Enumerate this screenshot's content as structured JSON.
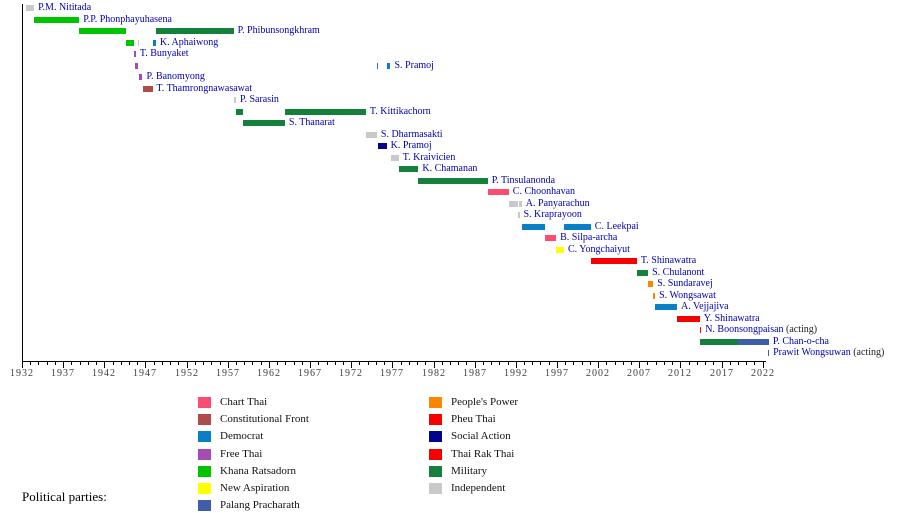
{
  "chart_data": {
    "type": "timeline",
    "title": "",
    "legend_title": "Political parties:",
    "axis": {
      "min": 1932,
      "max": 2023,
      "major_tick_interval": 5,
      "minor_tick_interval": 1,
      "tick_labels": [
        "1932",
        "1937",
        "1942",
        "1947",
        "1952",
        "1957",
        "1962",
        "1967",
        "1972",
        "1977",
        "1982",
        "1987",
        "1992",
        "1997",
        "2002",
        "2007",
        "2012",
        "2017",
        "2022"
      ]
    },
    "party_colors": {
      "Chart Thai": "#FB4D73",
      "Constitutional Front": "#AE4C4C",
      "Democrat": "#0780C8",
      "Free Thai": "#A54CB4",
      "Khana Ratsadorn": "#00C400",
      "New Aspiration": "#FFFF00",
      "Palang Pracharath": "#3F5DA9",
      "People's Power": "#FC8600",
      "Pheu Thai": "#F80000",
      "Social Action": "#03038C",
      "Thai Rak Thai": "#F80000",
      "Military": "#15803C",
      "Independent": "#C9C9C9"
    },
    "legend_columns": [
      [
        "Chart Thai",
        "Constitutional Front",
        "Democrat",
        "Free Thai",
        "Khana Ratsadorn",
        "New Aspiration",
        "Palang Pracharath"
      ],
      [
        "People's Power",
        "Pheu Thai",
        "Social Action",
        "Thai Rak Thai",
        "Military",
        "Independent"
      ]
    ],
    "rows": [
      {
        "name": "P.M. Nititada",
        "acting": "",
        "segments": [
          {
            "party": "Independent",
            "start": 1932.5,
            "end": 1933.47
          }
        ]
      },
      {
        "name": "P.P. Phonphayuhasena",
        "acting": "",
        "segments": [
          {
            "party": "Khana Ratsadorn",
            "start": 1933.47,
            "end": 1938.96
          }
        ]
      },
      {
        "name": "P. Phibunsongkhram",
        "acting": "",
        "segments": [
          {
            "party": "Khana Ratsadorn",
            "start": 1938.96,
            "end": 1944.58
          },
          {
            "party": "Military",
            "start": 1948.27,
            "end": 1957.71
          }
        ]
      },
      {
        "name": "K. Aphaiwong",
        "acting": "",
        "segments": [
          {
            "party": "Khana Ratsadorn",
            "start": 1944.58,
            "end": 1945.66
          },
          {
            "party": "Independent",
            "start": 1946.08,
            "end": 1946.23
          },
          {
            "party": "Democrat",
            "start": 1947.86,
            "end": 1948.27
          }
        ]
      },
      {
        "name": "T. Bunyaket",
        "acting": "",
        "segments": [
          {
            "party": "Free Thai",
            "start": 1945.66,
            "end": 1945.72
          }
        ]
      },
      {
        "name": "S. Pramoj",
        "acting": "",
        "segments": [
          {
            "party": "Free Thai",
            "start": 1945.72,
            "end": 1946.08
          },
          {
            "party": "Democrat",
            "start": 1975.12,
            "end": 1975.2
          },
          {
            "party": "Democrat",
            "start": 1976.3,
            "end": 1976.77
          }
        ]
      },
      {
        "name": "P. Banomyong",
        "acting": "",
        "segments": [
          {
            "party": "Free Thai",
            "start": 1946.23,
            "end": 1946.64
          }
        ]
      },
      {
        "name": "T. Thamrongnawasawat",
        "acting": "",
        "segments": [
          {
            "party": "Constitutional Front",
            "start": 1946.64,
            "end": 1947.85
          }
        ]
      },
      {
        "name": "P. Sarasin",
        "acting": "",
        "segments": [
          {
            "party": "Independent",
            "start": 1957.72,
            "end": 1958.0
          }
        ]
      },
      {
        "name": "T. Kittikachorn",
        "acting": "",
        "segments": [
          {
            "party": "Military",
            "start": 1958.0,
            "end": 1958.8
          },
          {
            "party": "Military",
            "start": 1963.94,
            "end": 1973.79
          }
        ]
      },
      {
        "name": "S. Thanarat",
        "acting": "",
        "segments": [
          {
            "party": "Military",
            "start": 1958.8,
            "end": 1963.94
          }
        ]
      },
      {
        "name": "S. Dharmasakti",
        "acting": "",
        "segments": [
          {
            "party": "Independent",
            "start": 1973.79,
            "end": 1975.12
          }
        ]
      },
      {
        "name": "K. Pramoj",
        "acting": "",
        "segments": [
          {
            "party": "Social Action",
            "start": 1975.2,
            "end": 1976.3
          }
        ]
      },
      {
        "name": "T. Kraivicien",
        "acting": "",
        "segments": [
          {
            "party": "Independent",
            "start": 1976.77,
            "end": 1977.78
          }
        ]
      },
      {
        "name": "K. Chamanan",
        "acting": "",
        "segments": [
          {
            "party": "Military",
            "start": 1977.86,
            "end": 1980.17
          }
        ]
      },
      {
        "name": "P. Tinsulanonda",
        "acting": "",
        "segments": [
          {
            "party": "Military",
            "start": 1980.17,
            "end": 1988.59
          }
        ]
      },
      {
        "name": "C. Choonhavan",
        "acting": "",
        "segments": [
          {
            "party": "Chart Thai",
            "start": 1988.59,
            "end": 1991.15
          }
        ]
      },
      {
        "name": "A. Panyarachun",
        "acting": "",
        "segments": [
          {
            "party": "Independent",
            "start": 1991.17,
            "end": 1992.27
          },
          {
            "party": "Independent",
            "start": 1992.44,
            "end": 1992.73
          }
        ]
      },
      {
        "name": "S. Kraprayoon",
        "acting": "",
        "segments": [
          {
            "party": "Independent",
            "start": 1992.27,
            "end": 1992.4
          }
        ]
      },
      {
        "name": "C. Leekpai",
        "acting": "",
        "segments": [
          {
            "party": "Democrat",
            "start": 1992.73,
            "end": 1995.53
          },
          {
            "party": "Democrat",
            "start": 1997.86,
            "end": 2001.11
          }
        ]
      },
      {
        "name": "B. Silpa-archa",
        "acting": "",
        "segments": [
          {
            "party": "Chart Thai",
            "start": 1995.53,
            "end": 1996.9
          }
        ]
      },
      {
        "name": "C. Yongchaiyut",
        "acting": "",
        "segments": [
          {
            "party": "New Aspiration",
            "start": 1996.9,
            "end": 1997.86
          }
        ]
      },
      {
        "name": "T. Shinawatra",
        "acting": "",
        "segments": [
          {
            "party": "Thai Rak Thai",
            "start": 2001.11,
            "end": 2006.72
          }
        ]
      },
      {
        "name": "S. Chulanont",
        "acting": "",
        "segments": [
          {
            "party": "Military",
            "start": 2006.75,
            "end": 2008.08
          }
        ]
      },
      {
        "name": "S. Sundaravej",
        "acting": "",
        "segments": [
          {
            "party": "People's Power",
            "start": 2008.08,
            "end": 2008.69
          }
        ]
      },
      {
        "name": "S. Wongsawat",
        "acting": "",
        "segments": [
          {
            "party": "People's Power",
            "start": 2008.72,
            "end": 2008.92
          }
        ]
      },
      {
        "name": "A. Vejjajiva",
        "acting": "",
        "segments": [
          {
            "party": "Democrat",
            "start": 2008.96,
            "end": 2011.59
          }
        ]
      },
      {
        "name": "Y. Shinawatra",
        "acting": "",
        "segments": [
          {
            "party": "Pheu Thai",
            "start": 2011.59,
            "end": 2014.35
          }
        ]
      },
      {
        "name": "N. Boonsongpaisan",
        "acting": " (acting)",
        "segments": [
          {
            "party": "Pheu Thai",
            "start": 2014.35,
            "end": 2014.42
          }
        ]
      },
      {
        "name": "P. Chan-o-cha",
        "acting": "",
        "segments": [
          {
            "party": "Military",
            "start": 2014.42,
            "end": 2019.0
          },
          {
            "party": "Palang Pracharath",
            "start": 2019.0,
            "end": 2022.75
          }
        ]
      },
      {
        "name": "Prawit Wongsuwan",
        "acting": " (acting)",
        "segments": [
          {
            "party": "Palang Pracharath",
            "start": 2022.6,
            "end": 2022.75
          }
        ]
      }
    ]
  }
}
